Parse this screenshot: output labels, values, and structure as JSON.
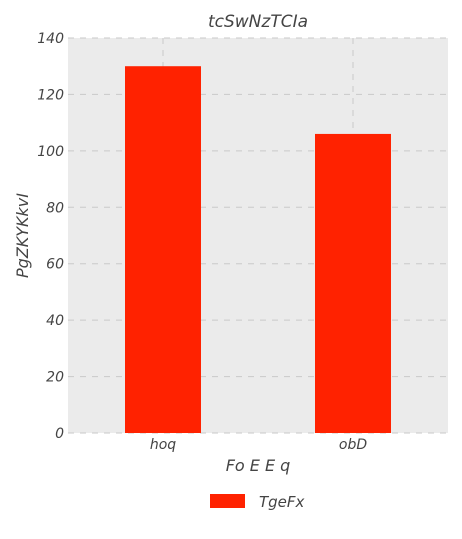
{
  "chart_data": {
    "type": "bar",
    "title": "tcSwNzTCIa",
    "xlabel": "Fo E E q",
    "ylabel": "PgZKYKkvI",
    "categories": [
      "hoq",
      "obD"
    ],
    "series": [
      {
        "name": "TgeFx",
        "values": [
          130,
          106
        ],
        "color": "#ff2200"
      }
    ],
    "ylim": [
      0,
      140
    ],
    "yticks": [
      0,
      20,
      40,
      60,
      80,
      100,
      120,
      140
    ],
    "grid": true,
    "legend_position": "bottom-center",
    "plot_background": "#ebebeb",
    "grid_color": "#c9c9c9"
  }
}
